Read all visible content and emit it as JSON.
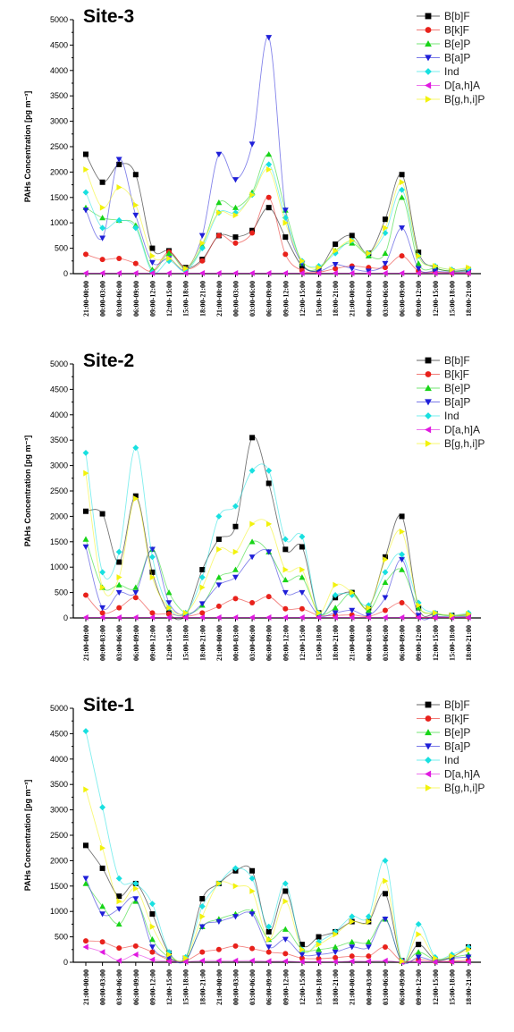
{
  "chart_data": [
    {
      "type": "line",
      "title": "Site-3",
      "ylabel": "PAHs Concentration [pg m⁻³]",
      "ylim": [
        0,
        5000
      ],
      "yticks": [
        0,
        500,
        1000,
        1500,
        2000,
        2500,
        3000,
        3500,
        4000,
        4500,
        5000
      ],
      "legend_position": "top-right",
      "categories": [
        "21:00-00:00",
        "00:00-03:00",
        "03:00-06:00",
        "06:00-09:00",
        "09:00-12:00",
        "12:00-15:00",
        "15:00-18:00",
        "18:00-21:00",
        "21:00-00:00",
        "00:00-03:00",
        "03:00-06:00",
        "06:00-09:00",
        "09:00-12:00",
        "12:00-15:00",
        "15:00-18:00",
        "18:00-21:00",
        "21:00-00:00",
        "00:00-03:00",
        "03:00-06:00",
        "06:00-09:00",
        "09:00-12:00",
        "12:00-15:00",
        "15:00-18:00",
        "18:00-21:00"
      ],
      "series": [
        {
          "name": "B[b]F",
          "color": "#000000",
          "marker": "square",
          "values": [
            2350,
            1800,
            2150,
            1950,
            500,
            450,
            120,
            280,
            750,
            720,
            850,
            1300,
            720,
            150,
            80,
            580,
            750,
            400,
            1070,
            1950,
            420,
            120,
            50,
            80
          ]
        },
        {
          "name": "B[k]F",
          "color": "#e8211b",
          "marker": "circle",
          "values": [
            380,
            280,
            300,
            200,
            50,
            430,
            100,
            250,
            750,
            600,
            800,
            1500,
            380,
            60,
            30,
            100,
            150,
            120,
            120,
            350,
            50,
            30,
            20,
            20
          ]
        },
        {
          "name": "B[e]P",
          "color": "#17d417",
          "marker": "triangle-up",
          "values": [
            1300,
            1100,
            1050,
            950,
            80,
            400,
            100,
            550,
            1400,
            1300,
            1600,
            2350,
            1250,
            200,
            100,
            450,
            600,
            350,
            400,
            1500,
            200,
            100,
            50,
            60
          ]
        },
        {
          "name": "B[a]P",
          "color": "#1f1fd8",
          "marker": "triangle-down",
          "values": [
            1250,
            700,
            2250,
            1150,
            220,
            300,
            80,
            750,
            2350,
            1850,
            2550,
            4650,
            1250,
            200,
            50,
            180,
            100,
            50,
            200,
            900,
            100,
            50,
            30,
            40
          ]
        },
        {
          "name": "Ind",
          "color": "#18e0e0",
          "marker": "diamond",
          "values": [
            1600,
            900,
            1050,
            900,
            30,
            250,
            50,
            500,
            1200,
            1200,
            1550,
            2150,
            1100,
            250,
            150,
            400,
            650,
            400,
            800,
            1650,
            350,
            150,
            80,
            100
          ]
        },
        {
          "name": "D[a,h]A",
          "color": "#e019e0",
          "marker": "triangle-left",
          "values": [
            10,
            10,
            10,
            10,
            10,
            10,
            10,
            10,
            10,
            10,
            10,
            10,
            10,
            10,
            10,
            10,
            10,
            10,
            10,
            10,
            10,
            10,
            10,
            10
          ]
        },
        {
          "name": "B[g,h,i]P",
          "color": "#f2f20c",
          "marker": "triangle-right",
          "values": [
            2050,
            1300,
            1700,
            1350,
            350,
            300,
            100,
            600,
            1200,
            1150,
            1550,
            2050,
            1000,
            250,
            120,
            450,
            650,
            400,
            900,
            1800,
            350,
            150,
            80,
            120
          ]
        }
      ]
    },
    {
      "type": "line",
      "title": "Site-2",
      "ylabel": "PAHs Concentration [pg m⁻³]",
      "ylim": [
        0,
        5000
      ],
      "yticks": [
        0,
        500,
        1000,
        1500,
        2000,
        2500,
        3000,
        3500,
        4000,
        4500,
        5000
      ],
      "legend_position": "top-right",
      "categories": [
        "21:00-00:00",
        "00:00-03:00",
        "03:00-06:00",
        "06:00-09:00",
        "09:00-12:00",
        "12:00-15:00",
        "15:00-18:00",
        "18:00-21:00",
        "21:00-00:00",
        "00:00-03:00",
        "03:00-06:00",
        "06:00-09:00",
        "09:00-12:00",
        "12:00-15:00",
        "15:00-18:00",
        "18:00-21:00",
        "21:00-00:00",
        "00:00-03:00",
        "03:00-06:00",
        "06:00-09:00",
        "09:00-12:00",
        "12:00-15:00",
        "15:00-18:00",
        "18:00-21:00"
      ],
      "series": [
        {
          "name": "B[b]F",
          "color": "#000000",
          "marker": "square",
          "values": [
            2100,
            2050,
            1100,
            2400,
            900,
            100,
            50,
            950,
            1550,
            1800,
            3550,
            2650,
            1350,
            1400,
            100,
            400,
            500,
            200,
            1200,
            2000,
            200,
            80,
            50,
            60
          ]
        },
        {
          "name": "B[k]F",
          "color": "#e8211b",
          "marker": "circle",
          "values": [
            450,
            100,
            200,
            400,
            100,
            80,
            30,
            100,
            230,
            380,
            300,
            420,
            180,
            180,
            50,
            50,
            60,
            30,
            150,
            300,
            30,
            20,
            15,
            20
          ]
        },
        {
          "name": "B[e]P",
          "color": "#17d417",
          "marker": "triangle-up",
          "values": [
            1550,
            600,
            650,
            600,
            1350,
            500,
            100,
            250,
            800,
            950,
            1500,
            1300,
            750,
            800,
            100,
            200,
            500,
            150,
            700,
            950,
            200,
            80,
            40,
            50
          ]
        },
        {
          "name": "B[a]P",
          "color": "#1f1fd8",
          "marker": "triangle-down",
          "values": [
            1400,
            200,
            500,
            500,
            1350,
            300,
            50,
            280,
            650,
            800,
            1200,
            1300,
            500,
            500,
            50,
            100,
            150,
            50,
            400,
            1150,
            50,
            30,
            20,
            30
          ]
        },
        {
          "name": "Ind",
          "color": "#18e0e0",
          "marker": "diamond",
          "values": [
            3250,
            900,
            1300,
            3350,
            1200,
            200,
            100,
            800,
            2000,
            2200,
            2900,
            2900,
            1550,
            1600,
            100,
            450,
            450,
            250,
            900,
            1250,
            300,
            100,
            50,
            100
          ]
        },
        {
          "name": "D[a,h]A",
          "color": "#e019e0",
          "marker": "triangle-left",
          "values": [
            10,
            10,
            10,
            10,
            10,
            10,
            10,
            10,
            10,
            10,
            10,
            10,
            10,
            10,
            10,
            10,
            10,
            10,
            10,
            10,
            10,
            10,
            10,
            10
          ]
        },
        {
          "name": "B[g,h,i]P",
          "color": "#f2f20c",
          "marker": "triangle-right",
          "values": [
            2850,
            600,
            800,
            2350,
            800,
            200,
            100,
            600,
            1350,
            1300,
            1850,
            1850,
            950,
            950,
            100,
            650,
            500,
            200,
            1150,
            1700,
            250,
            100,
            50,
            80
          ]
        }
      ]
    },
    {
      "type": "line",
      "title": "Site-1",
      "ylabel": "PAHs Concentration [pg m⁻³]",
      "ylim": [
        0,
        5000
      ],
      "yticks": [
        0,
        500,
        1000,
        1500,
        2000,
        2500,
        3000,
        3500,
        4000,
        4500,
        5000
      ],
      "legend_position": "top-right",
      "categories": [
        "21:00-00:00",
        "00:00-03:00",
        "03:00-06:00",
        "06:00-09:00",
        "09:00-12:00",
        "12:00-15:00",
        "15:00-18:00",
        "18:00-21:00",
        "21:00-00:00",
        "00:00-03:00",
        "03:00-06:00",
        "06:00-09:00",
        "09:00-12:00",
        "12:00-15:00",
        "15:00-18:00",
        "18:00-21:00",
        "21:00-00:00",
        "00:00-03:00",
        "03:00-06:00",
        "06:00-09:00",
        "09:00-12:00",
        "12:00-15:00",
        "15:00-18:00",
        "18:00-21:00"
      ],
      "series": [
        {
          "name": "B[b]F",
          "color": "#000000",
          "marker": "square",
          "values": [
            2300,
            1850,
            1300,
            1550,
            950,
            180,
            80,
            1250,
            1550,
            1800,
            1800,
            600,
            1400,
            350,
            500,
            600,
            800,
            800,
            1350,
            30,
            350,
            50,
            100,
            300
          ]
        },
        {
          "name": "B[k]F",
          "color": "#e8211b",
          "marker": "circle",
          "values": [
            420,
            400,
            280,
            320,
            200,
            50,
            30,
            200,
            250,
            320,
            270,
            200,
            170,
            80,
            70,
            90,
            120,
            120,
            300,
            20,
            50,
            20,
            20,
            40
          ]
        },
        {
          "name": "B[e]P",
          "color": "#17d417",
          "marker": "triangle-up",
          "values": [
            1550,
            1100,
            750,
            1200,
            450,
            100,
            50,
            700,
            850,
            950,
            1000,
            450,
            650,
            250,
            250,
            300,
            400,
            400,
            850,
            20,
            200,
            50,
            100,
            150
          ]
        },
        {
          "name": "B[a]P",
          "color": "#1f1fd8",
          "marker": "triangle-down",
          "values": [
            1650,
            950,
            1050,
            1250,
            300,
            80,
            30,
            700,
            800,
            900,
            950,
            300,
            450,
            150,
            150,
            200,
            300,
            300,
            850,
            10,
            100,
            30,
            80,
            100
          ]
        },
        {
          "name": "Ind",
          "color": "#18e0e0",
          "marker": "diamond",
          "values": [
            4550,
            3050,
            1650,
            1550,
            1150,
            200,
            100,
            1100,
            1550,
            1850,
            1650,
            700,
            1550,
            250,
            400,
            600,
            900,
            900,
            2000,
            30,
            750,
            100,
            150,
            300
          ]
        },
        {
          "name": "D[a,h]A",
          "color": "#e019e0",
          "marker": "triangle-left",
          "values": [
            300,
            200,
            30,
            150,
            50,
            20,
            10,
            30,
            30,
            30,
            30,
            20,
            20,
            10,
            10,
            10,
            20,
            20,
            30,
            5,
            10,
            5,
            10,
            10
          ]
        },
        {
          "name": "B[g,h,i]P",
          "color": "#f2f20c",
          "marker": "triangle-right",
          "values": [
            3400,
            2250,
            1200,
            1450,
            700,
            150,
            80,
            900,
            1550,
            1500,
            1400,
            450,
            1200,
            250,
            350,
            550,
            800,
            800,
            1600,
            20,
            550,
            80,
            120,
            250
          ]
        }
      ]
    }
  ]
}
